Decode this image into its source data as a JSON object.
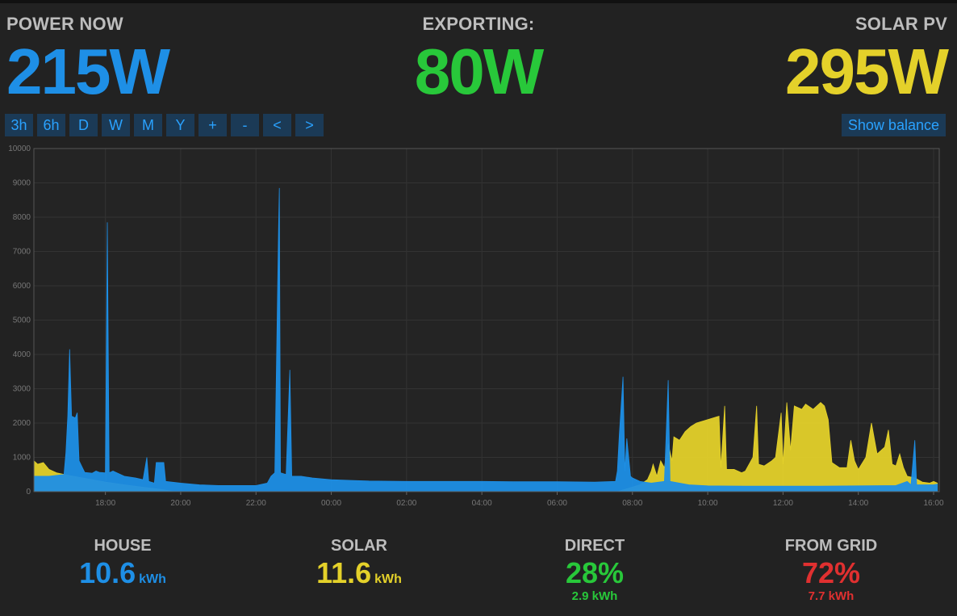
{
  "colors": {
    "house": "#1e8fe6",
    "solar": "#e4d12a",
    "export": "#28c83a",
    "grid": "#e03030",
    "button_bg": "#1b3a56",
    "button_text": "#2aa2ff"
  },
  "header": {
    "power_now": {
      "label": "POWER NOW",
      "value": "215W"
    },
    "exporting": {
      "label": "EXPORTING:",
      "value": "80W"
    },
    "solar_pv": {
      "label": "SOLAR PV",
      "value": "295W"
    }
  },
  "toolbar": {
    "buttons": [
      "3h",
      "6h",
      "D",
      "W",
      "M",
      "Y",
      "+",
      "-",
      "<",
      ">"
    ],
    "show_balance_label": "Show balance"
  },
  "chart_data": {
    "type": "area",
    "x_unit": "hours since 16:00",
    "x_range": [
      16.1,
      40.15
    ],
    "ylim": [
      0,
      10000
    ],
    "y_ticks": [
      0,
      1000,
      2000,
      3000,
      4000,
      5000,
      6000,
      7000,
      8000,
      9000,
      10000
    ],
    "x_ticks": [
      {
        "x": 18,
        "label": "18:00"
      },
      {
        "x": 20,
        "label": "20:00"
      },
      {
        "x": 22,
        "label": "22:00"
      },
      {
        "x": 24,
        "label": "00:00"
      },
      {
        "x": 26,
        "label": "02:00"
      },
      {
        "x": 28,
        "label": "04:00"
      },
      {
        "x": 30,
        "label": "06:00"
      },
      {
        "x": 32,
        "label": "08:00"
      },
      {
        "x": 34,
        "label": "10:00"
      },
      {
        "x": 36,
        "label": "12:00"
      },
      {
        "x": 38,
        "label": "14:00"
      },
      {
        "x": 40,
        "label": "16:00"
      }
    ],
    "grid": true,
    "series": [
      {
        "name": "Solar",
        "color": "#e4d12a",
        "points": [
          [
            16.1,
            900
          ],
          [
            16.2,
            800
          ],
          [
            16.35,
            850
          ],
          [
            16.5,
            650
          ],
          [
            16.7,
            550
          ],
          [
            17.0,
            480
          ],
          [
            17.5,
            380
          ],
          [
            18.0,
            280
          ],
          [
            18.5,
            200
          ],
          [
            19.0,
            130
          ],
          [
            19.5,
            60
          ],
          [
            19.8,
            10
          ],
          [
            31.6,
            0
          ],
          [
            31.9,
            100
          ],
          [
            32.2,
            200
          ],
          [
            32.4,
            350
          ],
          [
            32.5,
            600
          ],
          [
            32.55,
            800
          ],
          [
            32.65,
            450
          ],
          [
            32.75,
            900
          ],
          [
            32.85,
            700
          ],
          [
            32.95,
            1400
          ],
          [
            33.05,
            900
          ],
          [
            33.1,
            1600
          ],
          [
            33.25,
            1500
          ],
          [
            33.4,
            1750
          ],
          [
            33.55,
            1900
          ],
          [
            33.7,
            2000
          ],
          [
            33.85,
            2050
          ],
          [
            34.0,
            2100
          ],
          [
            34.15,
            2150
          ],
          [
            34.3,
            2200
          ],
          [
            34.35,
            700
          ],
          [
            34.45,
            2500
          ],
          [
            34.5,
            650
          ],
          [
            34.7,
            650
          ],
          [
            34.9,
            550
          ],
          [
            35.0,
            600
          ],
          [
            35.2,
            1000
          ],
          [
            35.3,
            2500
          ],
          [
            35.35,
            800
          ],
          [
            35.5,
            750
          ],
          [
            35.7,
            900
          ],
          [
            35.8,
            1000
          ],
          [
            35.95,
            2300
          ],
          [
            36.0,
            800
          ],
          [
            36.1,
            2600
          ],
          [
            36.2,
            1200
          ],
          [
            36.3,
            2500
          ],
          [
            36.5,
            2400
          ],
          [
            36.6,
            2550
          ],
          [
            36.8,
            2400
          ],
          [
            37.0,
            2600
          ],
          [
            37.1,
            2500
          ],
          [
            37.2,
            2100
          ],
          [
            37.3,
            850
          ],
          [
            37.5,
            700
          ],
          [
            37.7,
            700
          ],
          [
            37.8,
            1500
          ],
          [
            37.9,
            900
          ],
          [
            38.0,
            650
          ],
          [
            38.2,
            1000
          ],
          [
            38.35,
            2000
          ],
          [
            38.5,
            1100
          ],
          [
            38.7,
            1300
          ],
          [
            38.8,
            1800
          ],
          [
            38.9,
            800
          ],
          [
            39.0,
            750
          ],
          [
            39.1,
            1100
          ],
          [
            39.2,
            700
          ],
          [
            39.3,
            450
          ],
          [
            39.5,
            400
          ],
          [
            39.7,
            280
          ],
          [
            39.9,
            250
          ],
          [
            40.0,
            300
          ],
          [
            40.1,
            250
          ]
        ]
      },
      {
        "name": "House",
        "color": "#1e8fe6",
        "points": [
          [
            16.1,
            450
          ],
          [
            16.5,
            450
          ],
          [
            16.9,
            500
          ],
          [
            16.95,
            1150
          ],
          [
            17.0,
            2200
          ],
          [
            17.05,
            4150
          ],
          [
            17.1,
            2200
          ],
          [
            17.2,
            2150
          ],
          [
            17.25,
            2300
          ],
          [
            17.3,
            900
          ],
          [
            17.45,
            560
          ],
          [
            17.65,
            540
          ],
          [
            17.75,
            600
          ],
          [
            17.85,
            560
          ],
          [
            18.0,
            550
          ],
          [
            18.05,
            7850
          ],
          [
            18.1,
            550
          ],
          [
            18.2,
            600
          ],
          [
            18.5,
            450
          ],
          [
            18.8,
            400
          ],
          [
            19.0,
            350
          ],
          [
            19.1,
            1000
          ],
          [
            19.15,
            300
          ],
          [
            19.3,
            250
          ],
          [
            19.35,
            850
          ],
          [
            19.55,
            850
          ],
          [
            19.6,
            300
          ],
          [
            20.0,
            250
          ],
          [
            20.5,
            200
          ],
          [
            21.0,
            180
          ],
          [
            21.5,
            180
          ],
          [
            22.0,
            180
          ],
          [
            22.3,
            250
          ],
          [
            22.4,
            450
          ],
          [
            22.5,
            550
          ],
          [
            22.6,
            7650
          ],
          [
            22.62,
            8850
          ],
          [
            22.65,
            550
          ],
          [
            22.8,
            500
          ],
          [
            22.9,
            3550
          ],
          [
            22.95,
            450
          ],
          [
            23.2,
            450
          ],
          [
            23.5,
            400
          ],
          [
            24.0,
            350
          ],
          [
            24.5,
            330
          ],
          [
            25.0,
            310
          ],
          [
            26.0,
            300
          ],
          [
            27.0,
            300
          ],
          [
            28.0,
            300
          ],
          [
            29.0,
            290
          ],
          [
            30.0,
            290
          ],
          [
            31.0,
            280
          ],
          [
            31.55,
            300
          ],
          [
            31.6,
            600
          ],
          [
            31.65,
            1650
          ],
          [
            31.75,
            3350
          ],
          [
            31.8,
            600
          ],
          [
            31.85,
            1550
          ],
          [
            31.95,
            450
          ],
          [
            32.0,
            400
          ],
          [
            32.2,
            300
          ],
          [
            32.5,
            250
          ],
          [
            32.85,
            300
          ],
          [
            32.95,
            3250
          ],
          [
            33.0,
            300
          ],
          [
            33.5,
            200
          ],
          [
            34.0,
            170
          ],
          [
            35.0,
            160
          ],
          [
            36.0,
            160
          ],
          [
            37.0,
            160
          ],
          [
            38.0,
            170
          ],
          [
            39.0,
            180
          ],
          [
            39.3,
            300
          ],
          [
            39.4,
            200
          ],
          [
            39.5,
            1500
          ],
          [
            39.55,
            200
          ],
          [
            40.0,
            200
          ],
          [
            40.1,
            220
          ]
        ]
      }
    ]
  },
  "summary": {
    "house": {
      "label": "HOUSE",
      "value": "10.6",
      "unit": "kWh"
    },
    "solar": {
      "label": "SOLAR",
      "value": "11.6",
      "unit": "kWh"
    },
    "direct": {
      "label": "DIRECT",
      "value": "28%",
      "sub": "2.9 kWh"
    },
    "grid": {
      "label": "FROM GRID",
      "value": "72%",
      "sub": "7.7 kWh"
    }
  }
}
